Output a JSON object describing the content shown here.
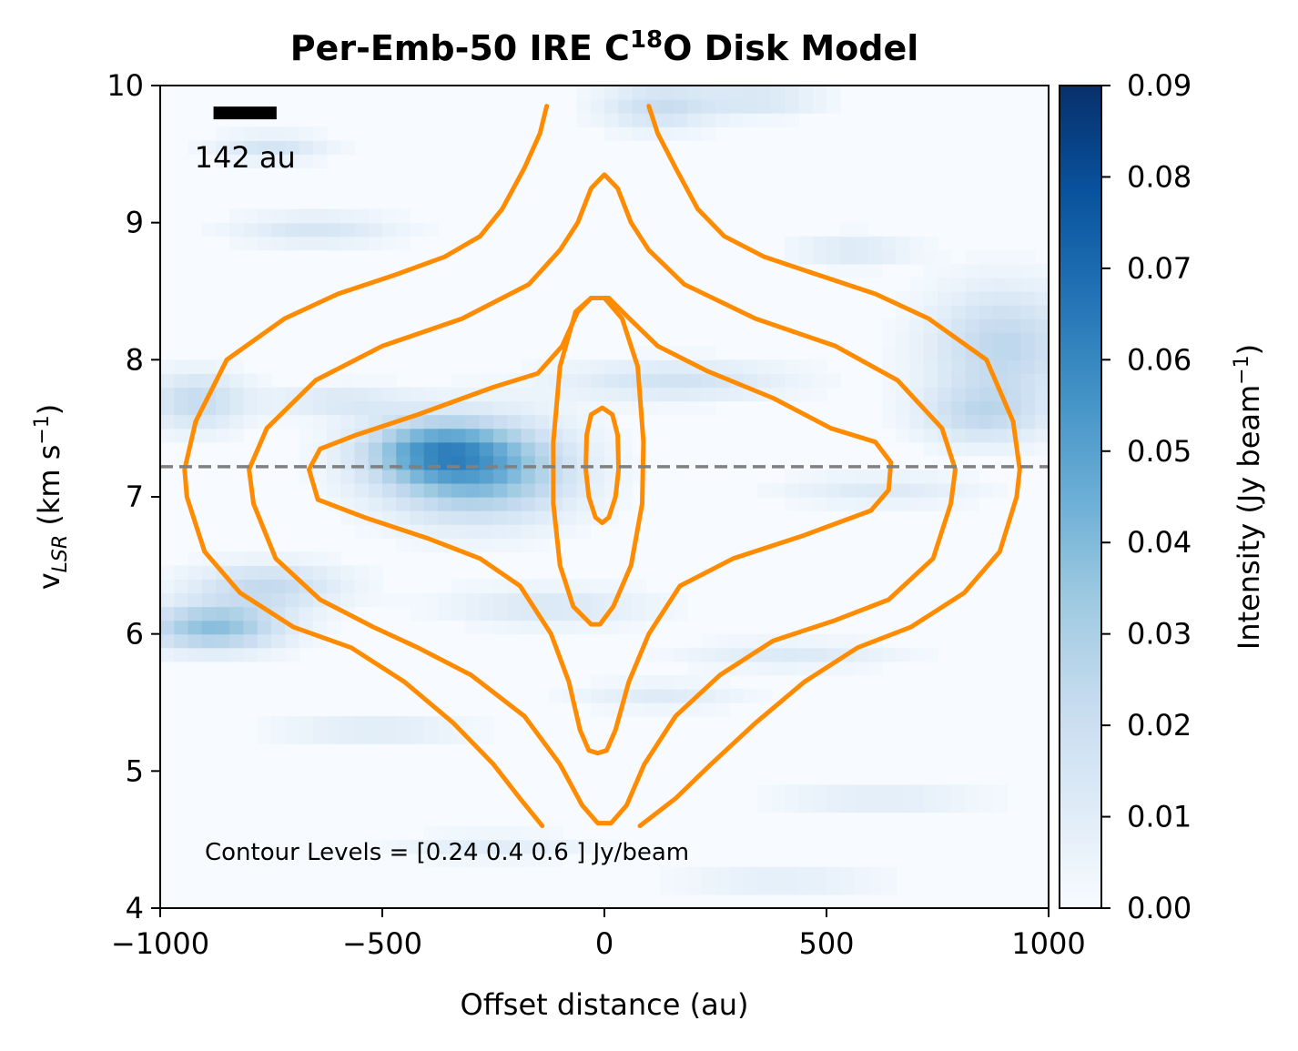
{
  "chart_data": {
    "type": "heatmap",
    "title": {
      "pre": "Per-Emb-50 IRE C",
      "sup": "18",
      "post": "O Disk Model"
    },
    "xlabel": "Offset distance (au)",
    "ylabel": {
      "v": "v",
      "sub": "LSR",
      "unit_pre": " (km s",
      "unit_sup": "−1",
      "unit_post": ")"
    },
    "xlim": [
      -1000,
      1000
    ],
    "ylim": [
      4,
      10
    ],
    "xticks": [
      -1000,
      -500,
      0,
      500,
      1000
    ],
    "xtick_labels": [
      "−1000",
      "−500",
      "0",
      "500",
      "1000"
    ],
    "yticks": [
      4,
      5,
      6,
      7,
      8,
      9,
      10
    ],
    "ytick_labels": [
      "4",
      "5",
      "6",
      "7",
      "8",
      "9",
      "10"
    ],
    "colormap": "Blues",
    "colorbar": {
      "label": {
        "pre": "Intensity (Jy beam",
        "sup": "−1",
        "post": ")"
      },
      "range": [
        0.0,
        0.09
      ],
      "ticks": [
        0.0,
        0.01,
        0.02,
        0.03,
        0.04,
        0.05,
        0.06,
        0.07,
        0.08,
        0.09
      ],
      "tick_labels": [
        "0.00",
        "0.01",
        "0.02",
        "0.03",
        "0.04",
        "0.05",
        "0.06",
        "0.07",
        "0.08",
        "0.09"
      ]
    },
    "heatmap_blobs": [
      {
        "x": -290,
        "y": 7.2,
        "sx": 150,
        "sy": 0.25,
        "v": 0.045
      },
      {
        "x": -390,
        "y": 7.35,
        "sx": 110,
        "sy": 0.15,
        "v": 0.03
      },
      {
        "x": -880,
        "y": 6.05,
        "sx": 110,
        "sy": 0.12,
        "v": 0.038
      },
      {
        "x": -760,
        "y": 6.35,
        "sx": 120,
        "sy": 0.12,
        "v": 0.022
      },
      {
        "x": -920,
        "y": 7.7,
        "sx": 80,
        "sy": 0.15,
        "v": 0.022
      },
      {
        "x": 900,
        "y": 8.1,
        "sx": 120,
        "sy": 0.3,
        "v": 0.025
      },
      {
        "x": 850,
        "y": 7.6,
        "sx": 100,
        "sy": 0.15,
        "v": 0.02
      },
      {
        "x": 160,
        "y": 7.85,
        "sx": 180,
        "sy": 0.1,
        "v": 0.017
      },
      {
        "x": 120,
        "y": 9.85,
        "sx": 90,
        "sy": 0.12,
        "v": 0.02
      },
      {
        "x": 350,
        "y": 9.9,
        "sx": 100,
        "sy": 0.08,
        "v": 0.015
      },
      {
        "x": -750,
        "y": 9.55,
        "sx": 90,
        "sy": 0.07,
        "v": 0.016
      },
      {
        "x": -650,
        "y": 8.95,
        "sx": 130,
        "sy": 0.08,
        "v": 0.015
      },
      {
        "x": 560,
        "y": 8.8,
        "sx": 90,
        "sy": 0.08,
        "v": 0.013
      },
      {
        "x": -120,
        "y": 6.2,
        "sx": 160,
        "sy": 0.1,
        "v": 0.014
      },
      {
        "x": 420,
        "y": 5.85,
        "sx": 170,
        "sy": 0.07,
        "v": 0.012
      },
      {
        "x": -520,
        "y": 5.3,
        "sx": 150,
        "sy": 0.07,
        "v": 0.012
      },
      {
        "x": 620,
        "y": 4.8,
        "sx": 160,
        "sy": 0.07,
        "v": 0.011
      },
      {
        "x": -250,
        "y": 4.45,
        "sx": 150,
        "sy": 0.07,
        "v": 0.01
      },
      {
        "x": 400,
        "y": 4.2,
        "sx": 160,
        "sy": 0.07,
        "v": 0.01
      },
      {
        "x": 120,
        "y": 5.55,
        "sx": 130,
        "sy": 0.07,
        "v": 0.011
      },
      {
        "x": 620,
        "y": 7.05,
        "sx": 150,
        "sy": 0.08,
        "v": 0.012
      },
      {
        "x": -600,
        "y": 7.7,
        "sx": 110,
        "sy": 0.08,
        "v": 0.013
      }
    ],
    "contours": {
      "levels_label": "Contour Levels = [0.24 0.4  0.6 ] Jy/beam",
      "color": "#ff8c00",
      "paths": [
        {
          "type": "open",
          "left": [
            [
              -130,
              9.85
            ],
            [
              -145,
              9.65
            ],
            [
              -180,
              9.4
            ],
            [
              -230,
              9.1
            ],
            [
              -280,
              8.9
            ],
            [
              -360,
              8.75
            ],
            [
              -470,
              8.62
            ],
            [
              -600,
              8.48
            ],
            [
              -720,
              8.3
            ],
            [
              -850,
              8.0
            ],
            [
              -920,
              7.55
            ],
            [
              -945,
              7.2
            ],
            [
              -940,
              7.0
            ],
            [
              -900,
              6.6
            ],
            [
              -820,
              6.3
            ],
            [
              -700,
              6.05
            ],
            [
              -570,
              5.9
            ],
            [
              -450,
              5.65
            ],
            [
              -340,
              5.35
            ],
            [
              -250,
              5.05
            ],
            [
              -190,
              4.8
            ],
            [
              -140,
              4.6
            ]
          ],
          "right": [
            [
              100,
              9.85
            ],
            [
              120,
              9.65
            ],
            [
              160,
              9.4
            ],
            [
              210,
              9.1
            ],
            [
              270,
              8.9
            ],
            [
              360,
              8.75
            ],
            [
              480,
              8.62
            ],
            [
              610,
              8.48
            ],
            [
              730,
              8.3
            ],
            [
              860,
              8.0
            ],
            [
              920,
              7.55
            ],
            [
              935,
              7.2
            ],
            [
              928,
              7.0
            ],
            [
              890,
              6.6
            ],
            [
              810,
              6.3
            ],
            [
              690,
              6.05
            ],
            [
              570,
              5.9
            ],
            [
              450,
              5.65
            ],
            [
              340,
              5.35
            ],
            [
              240,
              5.05
            ],
            [
              160,
              4.8
            ],
            [
              80,
              4.6
            ]
          ]
        },
        {
          "type": "closed",
          "pts": [
            [
              0,
              9.35
            ],
            [
              -30,
              9.25
            ],
            [
              -60,
              9.0
            ],
            [
              -100,
              8.8
            ],
            [
              -170,
              8.55
            ],
            [
              -320,
              8.3
            ],
            [
              -500,
              8.1
            ],
            [
              -650,
              7.85
            ],
            [
              -760,
              7.5
            ],
            [
              -800,
              7.2
            ],
            [
              -790,
              6.95
            ],
            [
              -740,
              6.55
            ],
            [
              -640,
              6.25
            ],
            [
              -520,
              6.05
            ],
            [
              -420,
              5.9
            ],
            [
              -300,
              5.7
            ],
            [
              -180,
              5.4
            ],
            [
              -100,
              5.05
            ],
            [
              -50,
              4.75
            ],
            [
              -15,
              4.62
            ],
            [
              15,
              4.62
            ],
            [
              50,
              4.75
            ],
            [
              90,
              5.05
            ],
            [
              160,
              5.4
            ],
            [
              260,
              5.7
            ],
            [
              380,
              5.95
            ],
            [
              520,
              6.1
            ],
            [
              640,
              6.25
            ],
            [
              740,
              6.55
            ],
            [
              780,
              6.95
            ],
            [
              790,
              7.2
            ],
            [
              760,
              7.5
            ],
            [
              660,
              7.85
            ],
            [
              520,
              8.1
            ],
            [
              340,
              8.3
            ],
            [
              180,
              8.55
            ],
            [
              100,
              8.8
            ],
            [
              60,
              9.0
            ],
            [
              30,
              9.25
            ]
          ]
        },
        {
          "type": "closed",
          "pts": [
            [
              -30,
              8.45
            ],
            [
              -60,
              8.35
            ],
            [
              -95,
              8.1
            ],
            [
              -150,
              7.9
            ],
            [
              -250,
              7.8
            ],
            [
              -420,
              7.6
            ],
            [
              -560,
              7.45
            ],
            [
              -640,
              7.35
            ],
            [
              -665,
              7.2
            ],
            [
              -645,
              6.98
            ],
            [
              -540,
              6.85
            ],
            [
              -400,
              6.7
            ],
            [
              -280,
              6.55
            ],
            [
              -190,
              6.35
            ],
            [
              -120,
              6.0
            ],
            [
              -80,
              5.65
            ],
            [
              -55,
              5.3
            ],
            [
              -35,
              5.15
            ],
            [
              -15,
              5.13
            ],
            [
              5,
              5.15
            ],
            [
              25,
              5.3
            ],
            [
              55,
              5.65
            ],
            [
              100,
              6.0
            ],
            [
              170,
              6.35
            ],
            [
              290,
              6.55
            ],
            [
              450,
              6.72
            ],
            [
              600,
              6.9
            ],
            [
              640,
              7.05
            ],
            [
              645,
              7.25
            ],
            [
              610,
              7.4
            ],
            [
              510,
              7.5
            ],
            [
              380,
              7.72
            ],
            [
              230,
              7.92
            ],
            [
              120,
              8.1
            ],
            [
              50,
              8.32
            ],
            [
              10,
              8.45
            ]
          ]
        },
        {
          "type": "closed",
          "pts": [
            [
              -30,
              8.45
            ],
            [
              -65,
              8.35
            ],
            [
              -100,
              7.95
            ],
            [
              -115,
              7.4
            ],
            [
              -115,
              6.95
            ],
            [
              -100,
              6.5
            ],
            [
              -70,
              6.2
            ],
            [
              -30,
              6.07
            ],
            [
              -10,
              6.07
            ],
            [
              20,
              6.2
            ],
            [
              60,
              6.5
            ],
            [
              85,
              6.95
            ],
            [
              88,
              7.4
            ],
            [
              75,
              7.95
            ],
            [
              40,
              8.3
            ],
            [
              0,
              8.45
            ]
          ]
        },
        {
          "type": "closed",
          "pts": [
            [
              -5,
              7.65
            ],
            [
              -30,
              7.6
            ],
            [
              -40,
              7.45
            ],
            [
              -42,
              7.2
            ],
            [
              -35,
              7.0
            ],
            [
              -20,
              6.85
            ],
            [
              -5,
              6.81
            ],
            [
              10,
              6.85
            ],
            [
              25,
              7.0
            ],
            [
              32,
              7.2
            ],
            [
              30,
              7.45
            ],
            [
              18,
              7.6
            ]
          ]
        }
      ]
    },
    "hline": {
      "y": 7.22,
      "style": "dashed",
      "color": "#808080"
    },
    "scalebar": {
      "label": "142 au",
      "x_start": -880,
      "x_end": -738,
      "y": 9.8
    }
  }
}
